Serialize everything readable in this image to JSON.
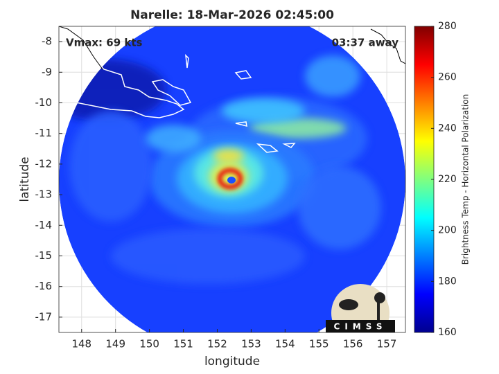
{
  "chart_data": {
    "type": "image",
    "title": "Narelle: 18-Mar-2026 02:45:00",
    "annotations": [
      "Vmax: 69 kts",
      "03:37 away"
    ],
    "x_label": "longitude",
    "y_label": "latitude",
    "xlim": [
      147.33,
      157.55
    ],
    "xticks": [
      148,
      149,
      150,
      151,
      152,
      153,
      154,
      155,
      156,
      157
    ],
    "ylim": [
      -17.5,
      -7.5
    ],
    "yticks": [
      -8,
      -9,
      -10,
      -11,
      -12,
      -13,
      -14,
      -15,
      -16,
      -17
    ],
    "grid": true,
    "colorbar": {
      "label": "Brightness Temp - Horizontal Polarization",
      "lim": [
        160,
        280
      ],
      "ticks": [
        160,
        180,
        200,
        220,
        240,
        260,
        280
      ],
      "colormap": "jet"
    }
  },
  "logo": "CIMSS"
}
